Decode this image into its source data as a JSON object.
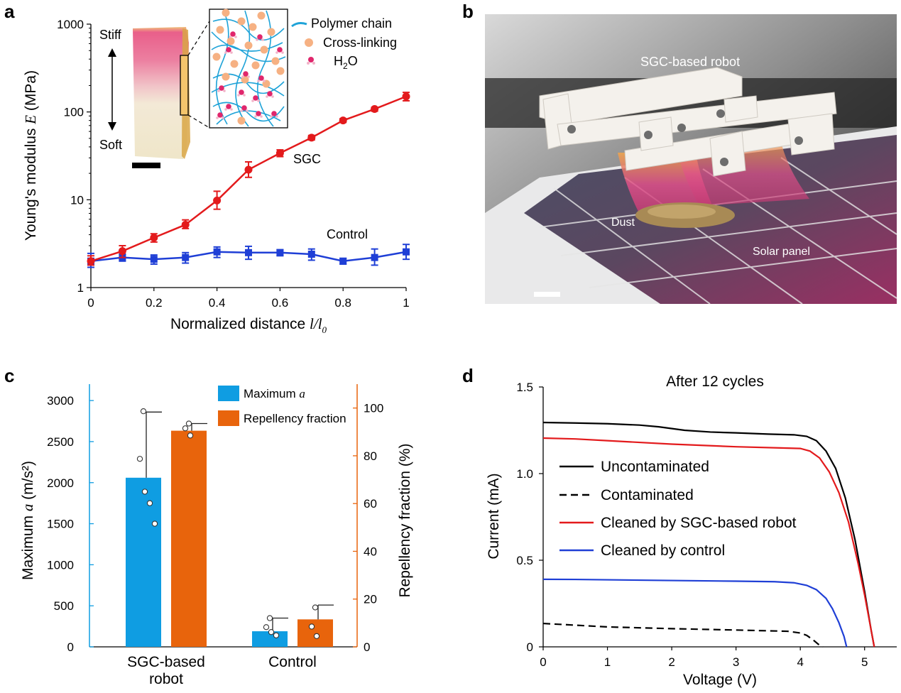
{
  "panels": {
    "a": "a",
    "b": "b",
    "c": "c",
    "d": "d"
  },
  "colors": {
    "sgc_red": "#e31a1c",
    "control_blue": "#1f3fd6",
    "bar_blue": "#0f9de2",
    "bar_orange": "#e8640c",
    "polymer": "#1fa3d8",
    "crosslink": "#f6b183",
    "water": "#e0266c"
  },
  "chart_data": [
    {
      "id": "a",
      "type": "line",
      "ylabel_prefix": "Young's modulus ",
      "ylabel_var": "E",
      "ylabel_suffix": " (MPa)",
      "xlabel_prefix": "Normalized distance ",
      "xlabel_var": "l/l",
      "xlabel_sub": "0",
      "yscale": "log",
      "ylim": [
        1,
        1000
      ],
      "xlim": [
        0,
        1
      ],
      "yticks": [
        1,
        10,
        100,
        1000
      ],
      "ytick_labels": [
        "1",
        "10",
        "100",
        "1000"
      ],
      "xticks": [
        0,
        0.2,
        0.4,
        0.6,
        0.8,
        1
      ],
      "xtick_labels": [
        "0",
        "0.2",
        "0.4",
        "0.6",
        "0.8",
        "1"
      ],
      "x": [
        0,
        0.1,
        0.2,
        0.3,
        0.4,
        0.5,
        0.6,
        0.7,
        0.8,
        0.9,
        1.0
      ],
      "series": [
        {
          "name": "SGC",
          "color": "#e31a1c",
          "marker": "circle",
          "values": [
            2.0,
            2.6,
            3.7,
            5.2,
            9.8,
            22,
            34,
            51,
            80,
            108,
            150
          ],
          "err_low": [
            1.8,
            2.2,
            3.3,
            4.7,
            7.8,
            18,
            31,
            48,
            76,
            102,
            134
          ],
          "err_high": [
            2.3,
            3.0,
            4.1,
            5.9,
            12.5,
            27,
            37,
            54,
            84,
            113,
            167
          ]
        },
        {
          "name": "Control",
          "color": "#1f3fd6",
          "marker": "square",
          "values": [
            2.0,
            2.2,
            2.1,
            2.2,
            2.55,
            2.5,
            2.5,
            2.4,
            2.0,
            2.2,
            2.55
          ],
          "err_low": [
            1.7,
            2.0,
            1.85,
            1.9,
            2.2,
            2.1,
            2.3,
            2.05,
            1.85,
            1.8,
            2.1
          ],
          "err_high": [
            2.45,
            2.4,
            2.35,
            2.5,
            2.9,
            2.95,
            2.7,
            2.75,
            2.15,
            2.75,
            3.1
          ]
        }
      ],
      "inset": {
        "stiff_label": "Stiff",
        "soft_label": "Soft",
        "legend_polymer": "Polymer chain",
        "legend_crosslink": "Cross-linking",
        "legend_water_main": "H",
        "legend_water_sub": "2",
        "legend_water_end": "O"
      }
    },
    {
      "id": "b",
      "type": "photo",
      "labels": {
        "robot": "SGC-based robot",
        "dust": "Dust",
        "panel": "Solar panel"
      }
    },
    {
      "id": "c",
      "type": "bar",
      "categories_line1": [
        "SGC-based",
        "Control"
      ],
      "categories_line2": [
        "robot",
        ""
      ],
      "ylabel_left_prefix": "Maximum ",
      "ylabel_left_var": "a",
      "ylabel_left_suffix": " (m/s²)",
      "ylabel_right": "Repellency fraction (%)",
      "ylim_left": [
        0,
        3200
      ],
      "ylim_right": [
        0,
        110
      ],
      "yticks_left": [
        0,
        500,
        1000,
        1500,
        2000,
        2500,
        3000
      ],
      "yticks_right": [
        0,
        20,
        40,
        60,
        80,
        100
      ],
      "series": [
        {
          "name_prefix": "Maximum ",
          "name_var": "a",
          "axis": "left",
          "color": "#0f9de2",
          "values": [
            2060,
            190
          ],
          "err_high": [
            2860,
            350
          ],
          "points": [
            [
              2870,
              2290,
              1890,
              1750,
              1500
            ],
            [
              350,
              240,
              180,
              140
            ]
          ]
        },
        {
          "name_prefix": "Repellency fraction",
          "name_var": "",
          "axis": "right",
          "color": "#e8640c",
          "values": [
            90.5,
            11.5
          ],
          "err_high": [
            93.5,
            17.5
          ],
          "points": [
            [
              93.5,
              91.5,
              88.5
            ],
            [
              16.5,
              8.5,
              4.5
            ]
          ]
        }
      ]
    },
    {
      "id": "d",
      "type": "line",
      "title": "After 12 cycles",
      "xlabel": "Voltage (V)",
      "ylabel": "Current (mA)",
      "xlim": [
        0,
        5.5
      ],
      "ylim": [
        0,
        1.5
      ],
      "xticks": [
        0,
        1,
        2,
        3,
        4,
        5
      ],
      "yticks": [
        0,
        0.5,
        1.0,
        1.5
      ],
      "ytick_labels": [
        "0",
        "0.5",
        "1.0",
        "1.5"
      ],
      "series": [
        {
          "name": "Uncontaminated",
          "color": "#000000",
          "dash": false,
          "x": [
            0,
            0.5,
            1,
            1.5,
            1.8,
            2.2,
            2.6,
            3,
            3.5,
            3.9,
            4.1,
            4.25,
            4.4,
            4.55,
            4.7,
            4.85,
            5.0,
            5.1,
            5.15
          ],
          "y": [
            1.295,
            1.292,
            1.288,
            1.28,
            1.27,
            1.25,
            1.24,
            1.235,
            1.228,
            1.224,
            1.215,
            1.19,
            1.13,
            1.03,
            0.86,
            0.62,
            0.32,
            0.1,
            0
          ]
        },
        {
          "name": "Contaminated",
          "color": "#000000",
          "dash": true,
          "x": [
            0,
            0.5,
            1,
            2,
            3,
            3.8,
            4.0,
            4.1,
            4.2,
            4.28,
            4.35
          ],
          "y": [
            0.135,
            0.125,
            0.115,
            0.105,
            0.097,
            0.09,
            0.08,
            0.066,
            0.04,
            0.015,
            0
          ]
        },
        {
          "name": "Cleaned by SGC-based robot",
          "color": "#e31a1c",
          "dash": false,
          "x": [
            0,
            0.5,
            1,
            2,
            3,
            3.7,
            4.0,
            4.15,
            4.3,
            4.45,
            4.6,
            4.75,
            4.9,
            5.0,
            5.1,
            5.15
          ],
          "y": [
            1.205,
            1.2,
            1.19,
            1.17,
            1.155,
            1.148,
            1.145,
            1.13,
            1.09,
            1.01,
            0.89,
            0.72,
            0.48,
            0.3,
            0.1,
            0
          ]
        },
        {
          "name": "Cleaned by control",
          "color": "#1f3fd6",
          "dash": false,
          "x": [
            0,
            0.5,
            1,
            2,
            3,
            3.6,
            3.9,
            4.1,
            4.25,
            4.4,
            4.5,
            4.6,
            4.68,
            4.72
          ],
          "y": [
            0.39,
            0.389,
            0.387,
            0.383,
            0.379,
            0.376,
            0.37,
            0.355,
            0.33,
            0.28,
            0.22,
            0.14,
            0.06,
            0
          ]
        }
      ]
    }
  ]
}
